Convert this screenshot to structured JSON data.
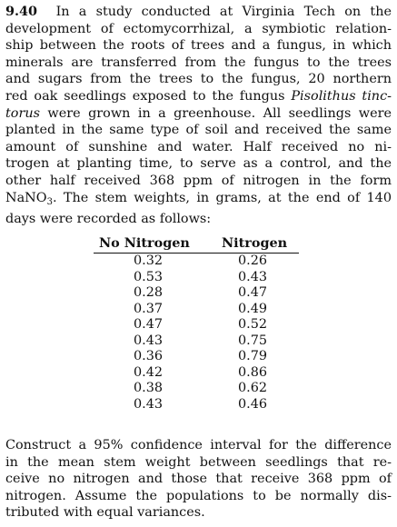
{
  "problem_number": "9.40",
  "intro_lines": {
    "l1_rest": "In a study conducted at Virginia Tech on the",
    "l2": "development of ectomycorrhizal, a symbiotic relation-",
    "l3": "ship between the roots of trees and a fungus, in which",
    "l4": "minerals are transferred from the fungus to the trees",
    "l5": "and sugars from the trees to the fungus, 20 northern",
    "l6_pre": "red oak seedlings exposed to the fungus",
    "l6_italic": "Pisolithus tinc-",
    "l7_italic": "torus",
    "l7_post": "were grown in a greenhouse. All seedlings were",
    "l8": "planted in the same type of soil and received the same",
    "l9": "amount of sunshine and water. Half received no ni-",
    "l10": "trogen at planting time, to serve as a control, and the",
    "l11": "other half received 368 ppm of nitrogen in the form",
    "l12_chem": "NaNO",
    "l12_sub": "3",
    "l12_post": ". The stem weights, in grams, at the end of 140",
    "l13": "days were recorded as follows:"
  },
  "table": {
    "headers": [
      "No Nitrogen",
      "Nitrogen"
    ],
    "rows": [
      [
        "0.32",
        "0.26"
      ],
      [
        "0.53",
        "0.43"
      ],
      [
        "0.28",
        "0.47"
      ],
      [
        "0.37",
        "0.49"
      ],
      [
        "0.47",
        "0.52"
      ],
      [
        "0.43",
        "0.75"
      ],
      [
        "0.36",
        "0.79"
      ],
      [
        "0.42",
        "0.86"
      ],
      [
        "0.38",
        "0.62"
      ],
      [
        "0.43",
        "0.46"
      ]
    ]
  },
  "closing_lines": {
    "l1": "Construct a 95% confidence interval for the difference",
    "l2": "in the mean stem weight between seedlings that re-",
    "l3": "ceive no nitrogen and those that receive 368 ppm of",
    "l4": "nitrogen. Assume the populations to be normally dis-",
    "l5": "tributed with equal variances."
  }
}
